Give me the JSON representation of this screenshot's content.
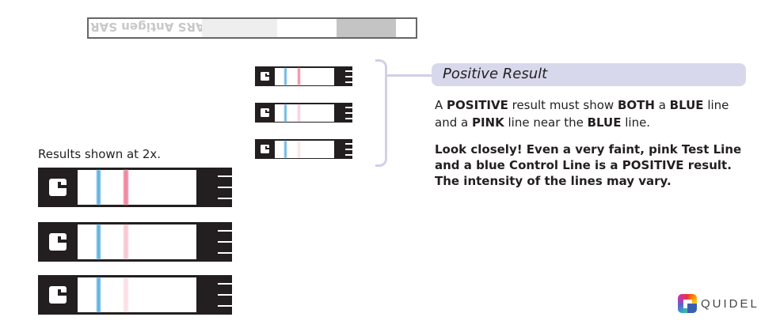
{
  "top_strip": {
    "text": "igen SARS Antigen SAR"
  },
  "caption": "Results shown at 2x.",
  "section": {
    "title": "Positive Result",
    "paragraph1": [
      {
        "t": "A ",
        "b": false
      },
      {
        "t": "POSITIVE",
        "b": true
      },
      {
        "t": " result must show ",
        "b": false
      },
      {
        "t": "BOTH",
        "b": true
      },
      {
        "t": " a ",
        "b": false
      },
      {
        "t": "BLUE",
        "b": true
      },
      {
        "t": " line and a ",
        "b": false
      },
      {
        "t": "PINK",
        "b": true
      },
      {
        "t": " line near the ",
        "b": false
      },
      {
        "t": "BLUE",
        "b": true
      },
      {
        "t": " line.",
        "b": false
      }
    ],
    "paragraph2": "Look closely! Even a very faint, pink Test Line and a blue Control Line is a POSITIVE result. The intensity of the lines may vary."
  },
  "strips": {
    "control_color": "#4aa8dc",
    "test_color": "#f08aa0",
    "test_line_intensity": [
      1.0,
      0.45,
      0.25
    ]
  },
  "brand": {
    "name": "QUIDEL"
  }
}
